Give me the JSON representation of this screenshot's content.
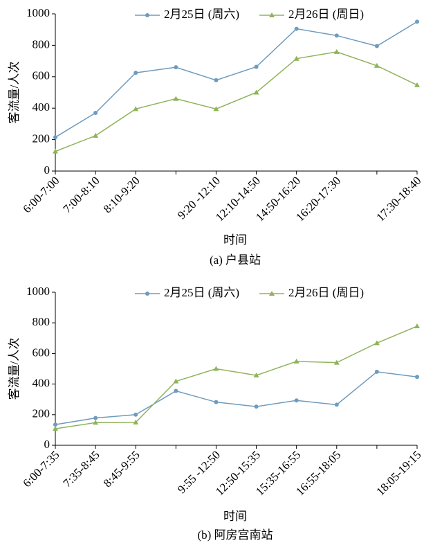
{
  "chart_data": [
    {
      "type": "line",
      "caption": "(a) 户县站",
      "x_label": "时间",
      "y_label": "客流量/人次",
      "categories": [
        "6:00-7:00",
        "7:00-8:10",
        "8:10-9:20",
        null,
        "9:20 -12:10",
        "12:10-14:50",
        "14:50-16:20",
        "16:20-17:30",
        null,
        "17:30-18:40"
      ],
      "series": [
        {
          "name": "2月25日 (周六)",
          "color": "#6f9bbd",
          "marker": "circle",
          "values": [
            215,
            370,
            625,
            660,
            578,
            663,
            905,
            862,
            795,
            950
          ]
        },
        {
          "name": "2月26日 (周日)",
          "color": "#8fb35a",
          "marker": "triangle",
          "values": [
            125,
            225,
            395,
            460,
            395,
            500,
            715,
            758,
            670,
            547
          ]
        }
      ],
      "ylim": [
        0,
        1000
      ],
      "yticks": [
        0,
        200,
        400,
        600,
        800,
        1000
      ],
      "legend": "top"
    },
    {
      "type": "line",
      "caption": "(b) 阿房宫南站",
      "x_label": "时间",
      "y_label": "客流量/人次",
      "categories": [
        "6:00-7:35",
        "7:35-8:45",
        "8:45-9:55",
        null,
        "9:55 -12:50",
        "12:50-15:35",
        "15:35-16:55",
        "16:55-18:05",
        null,
        "18:05-19:15"
      ],
      "series": [
        {
          "name": "2月25日 (周六)",
          "color": "#6f9bbd",
          "marker": "circle",
          "values": [
            135,
            178,
            200,
            355,
            282,
            253,
            293,
            265,
            480,
            447
          ]
        },
        {
          "name": "2月26日 (周日)",
          "color": "#8fb35a",
          "marker": "triangle",
          "values": [
            108,
            148,
            150,
            418,
            500,
            457,
            548,
            540,
            668,
            778
          ]
        }
      ],
      "ylim": [
        0,
        1000
      ],
      "yticks": [
        0,
        200,
        400,
        600,
        800,
        1000
      ],
      "legend": "top"
    }
  ]
}
